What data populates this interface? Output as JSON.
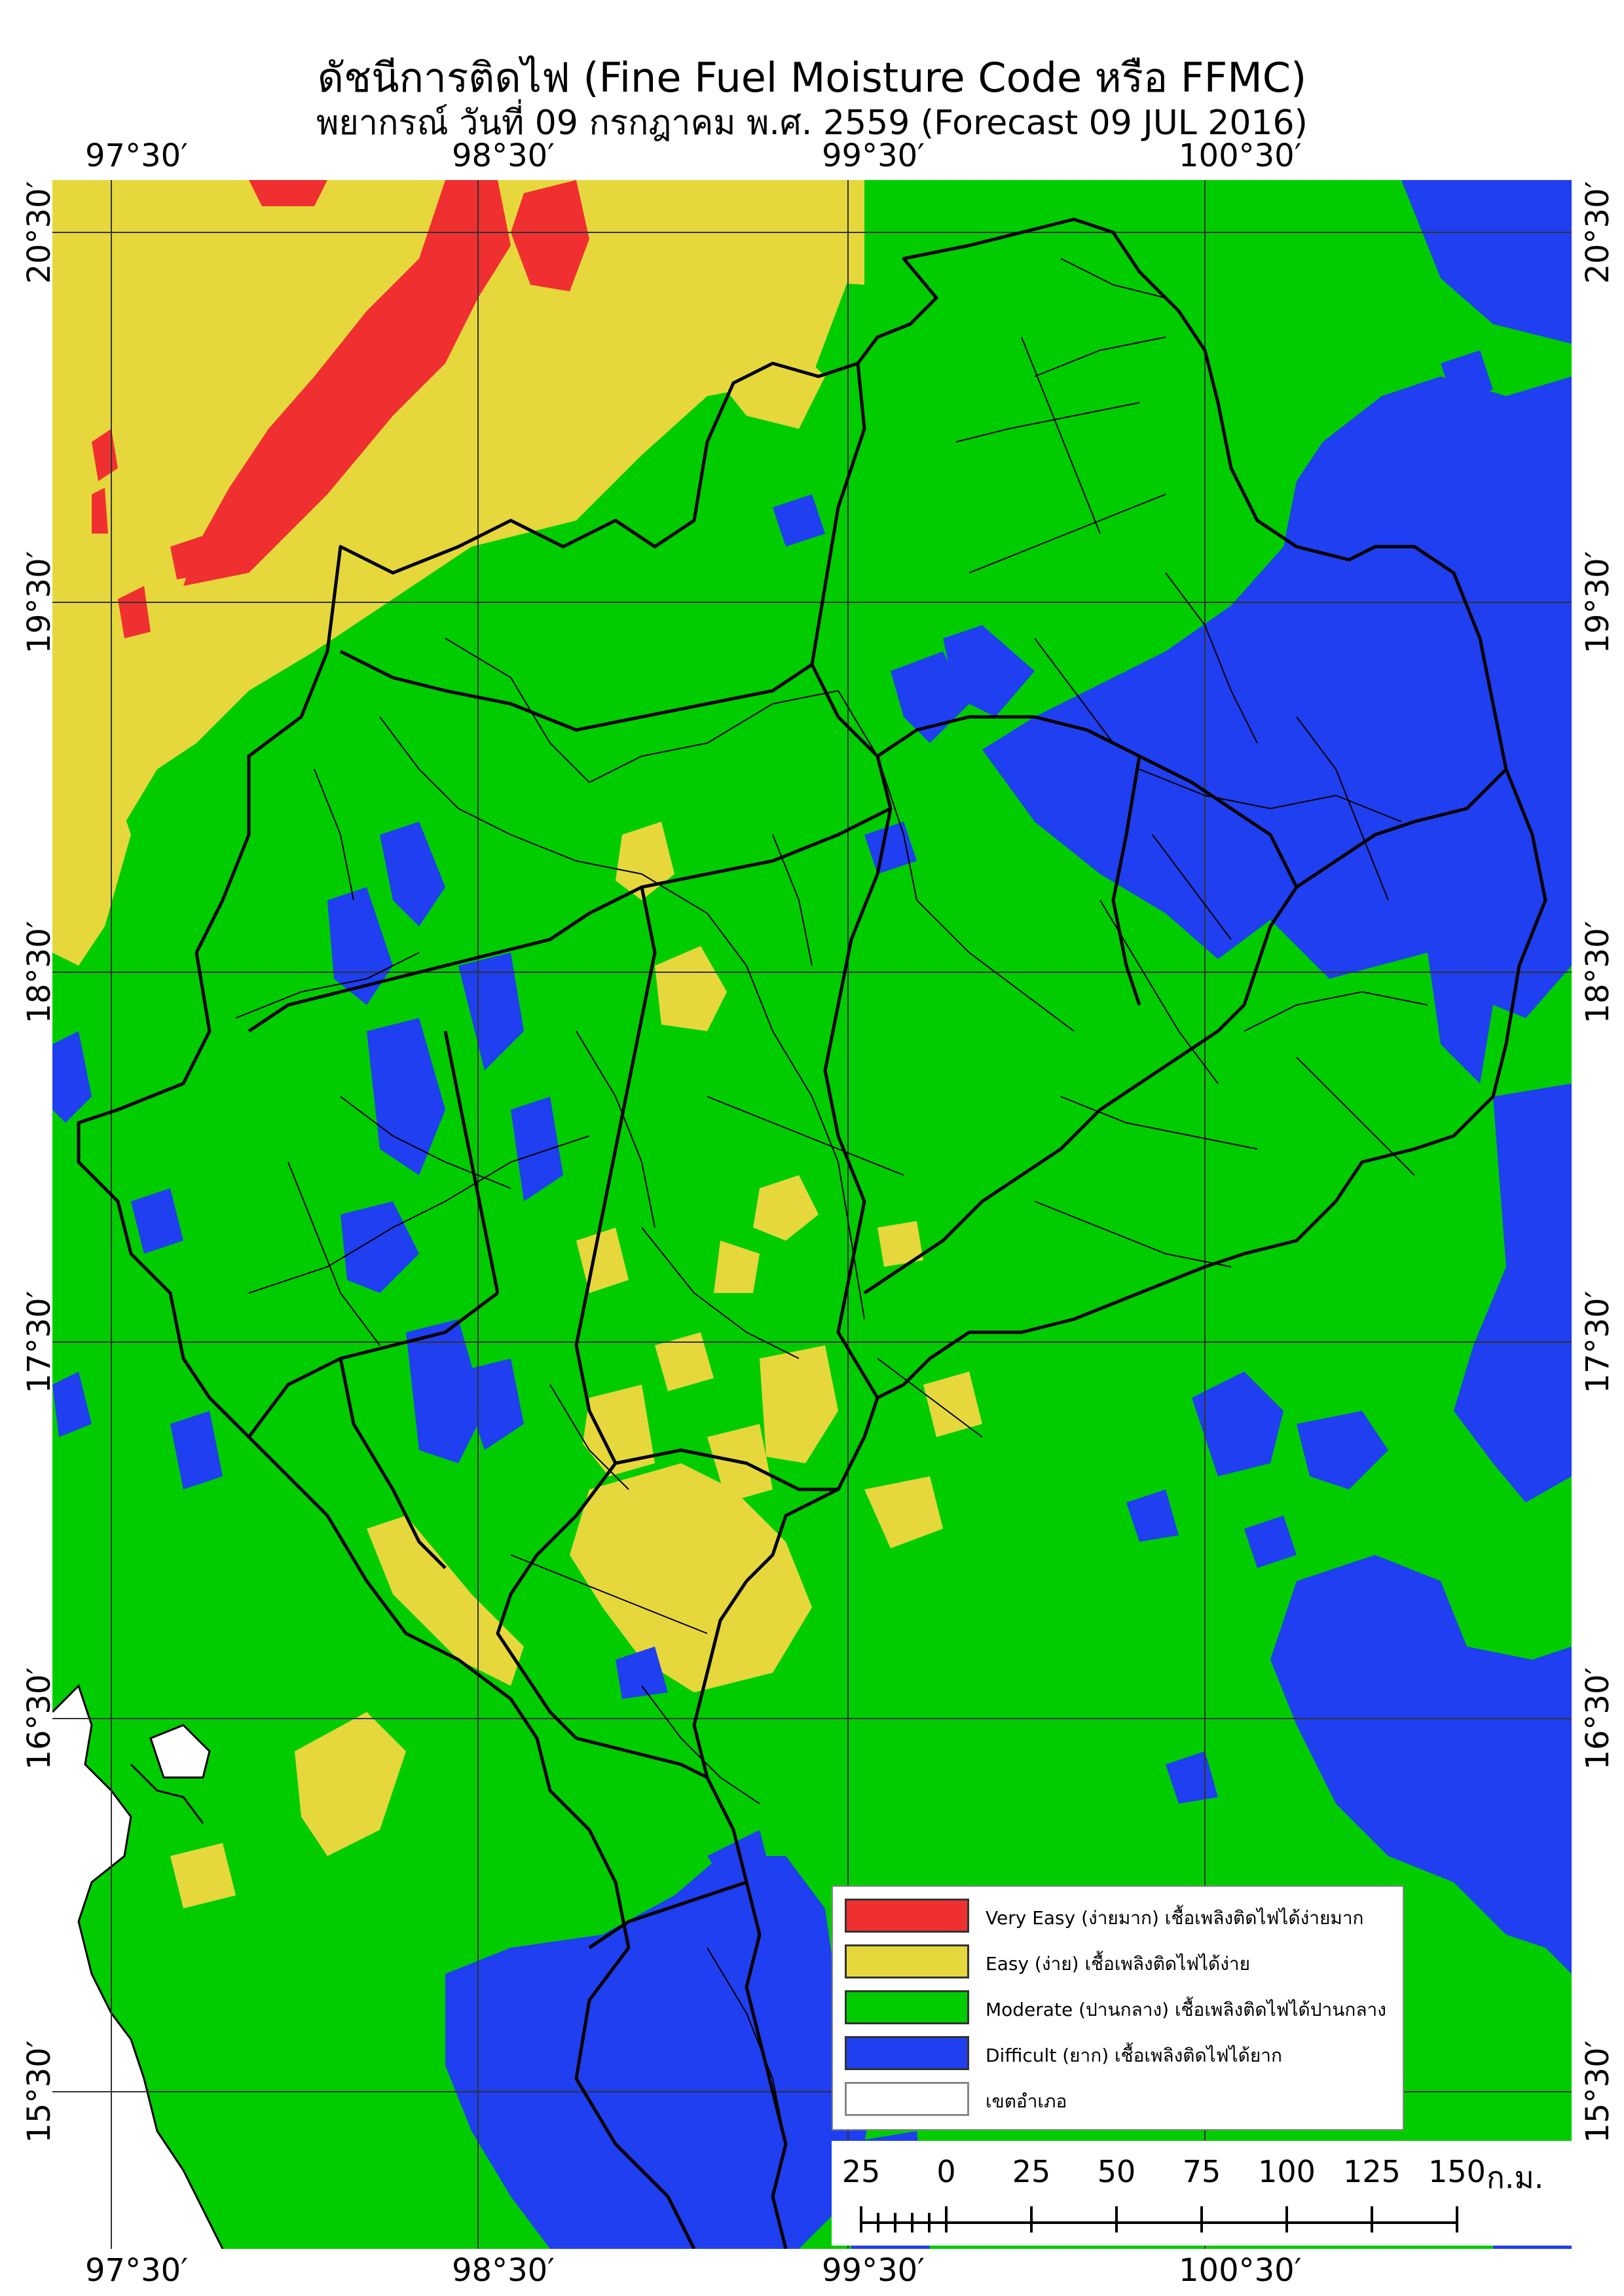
{
  "title": "ดัชนีการติดไฟ (Fine Fuel Moisture Code หรือ FFMC)",
  "subtitle": "พยากรณ์ วันที่ 09 กรกฎาคม พ.ศ. 2559 (Forecast 09 JUL 2016)",
  "lon_ticks": [
    "97°30′",
    "98°30′",
    "99°30′",
    "100°30′"
  ],
  "lat_ticks": [
    "20°30′",
    "19°30′",
    "18°30′",
    "17°30′",
    "16°30′",
    "15°30′"
  ],
  "legend": [
    {
      "label": "Very Easy (ง่ายมาก) เชื้อเพลิงติดไฟได้ง่ายมาก",
      "color": "#f03030"
    },
    {
      "label": "Easy (ง่าย) เชื้อเพลิงติดไฟได้ง่าย",
      "color": "#e6d83c"
    },
    {
      "label": "Moderate (ปานกลาง) เชื้อเพลิงติดไฟได้ปานกลาง",
      "color": "#00cc00"
    },
    {
      "label": "Difficult (ยาก) เชื้อเพลิงติดไฟได้ยาก",
      "color": "#1f3ff0"
    },
    {
      "label": "เขตอำเภอ",
      "color": "#ffffff"
    }
  ],
  "scale_bar": {
    "labels": [
      "25",
      "0",
      "25",
      "50",
      "75",
      "100",
      "125",
      "150"
    ],
    "unit": "ก.ม."
  },
  "colors": {
    "very_easy": "#f03030",
    "easy": "#e6d83c",
    "moderate": "#00cc00",
    "difficult": "#1f3ff0",
    "sea": "#ffffff",
    "boundary": "#000000",
    "graticule": "#333333"
  }
}
